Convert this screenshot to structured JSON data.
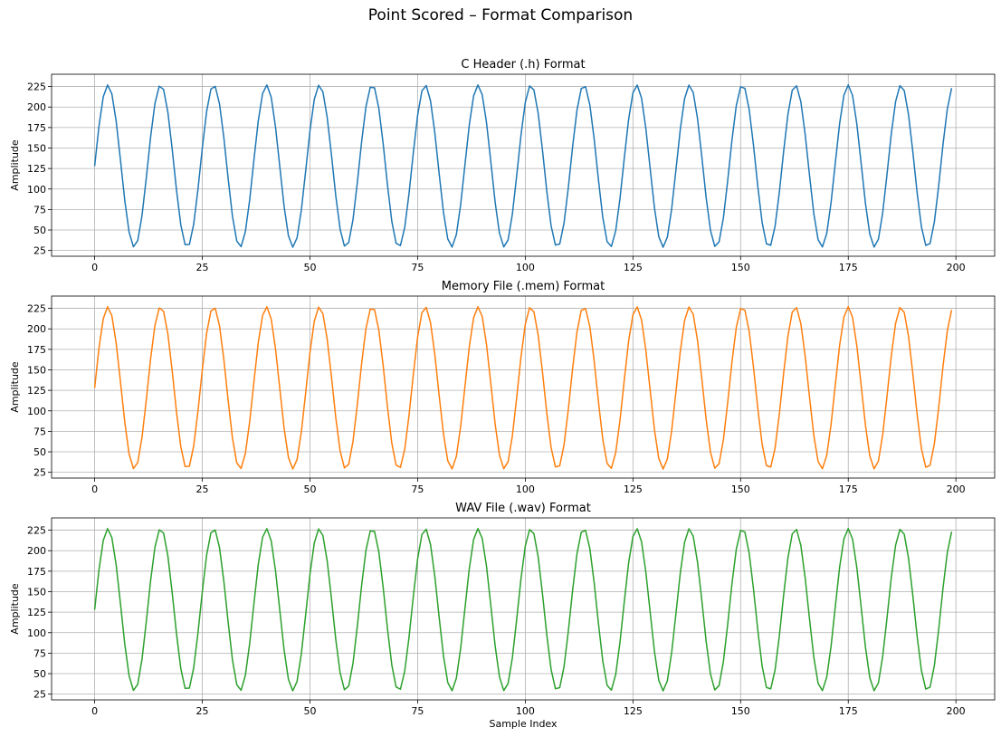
{
  "figure": {
    "suptitle": "Point Scored – Format Comparison"
  },
  "chart_data": [
    {
      "type": "line",
      "title": "C Header (.h) Format",
      "xlabel": "",
      "ylabel": "Amplitude",
      "color": "#1f77b4",
      "xlim": [
        -10,
        209
      ],
      "ylim": [
        18,
        240
      ],
      "xticks": [
        0,
        25,
        50,
        75,
        100,
        125,
        150,
        175,
        200
      ],
      "yticks": [
        25,
        50,
        75,
        100,
        125,
        150,
        175,
        200,
        225
      ],
      "grid": true,
      "signal": {
        "n": 200,
        "center": 128,
        "amplitude": 99,
        "period": 12.28
      },
      "series": [
        {
          "x_start": 0,
          "x_end": 199
        }
      ]
    },
    {
      "type": "line",
      "title": "Memory File (.mem) Format",
      "xlabel": "",
      "ylabel": "Amplitude",
      "color": "#ff7f0e",
      "xlim": [
        -10,
        209
      ],
      "ylim": [
        18,
        240
      ],
      "xticks": [
        0,
        25,
        50,
        75,
        100,
        125,
        150,
        175,
        200
      ],
      "yticks": [
        25,
        50,
        75,
        100,
        125,
        150,
        175,
        200,
        225
      ],
      "grid": true,
      "signal": {
        "n": 200,
        "center": 128,
        "amplitude": 99,
        "period": 12.28
      },
      "series": [
        {
          "x_start": 0,
          "x_end": 199
        }
      ]
    },
    {
      "type": "line",
      "title": "WAV File (.wav) Format",
      "xlabel": "Sample Index",
      "ylabel": "Amplitude",
      "color": "#2ca02c",
      "xlim": [
        -10,
        209
      ],
      "ylim": [
        18,
        240
      ],
      "xticks": [
        0,
        25,
        50,
        75,
        100,
        125,
        150,
        175,
        200
      ],
      "yticks": [
        25,
        50,
        75,
        100,
        125,
        150,
        175,
        200,
        225
      ],
      "grid": true,
      "signal": {
        "n": 200,
        "center": 128,
        "amplitude": 99,
        "period": 12.28
      },
      "series": [
        {
          "x_start": 0,
          "x_end": 199
        }
      ]
    }
  ]
}
